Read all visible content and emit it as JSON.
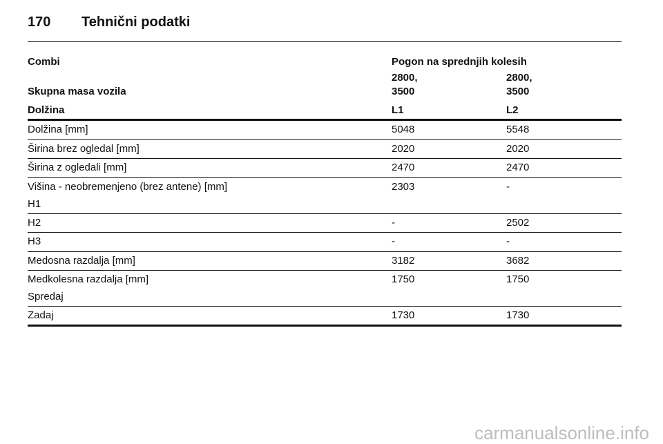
{
  "header": {
    "page_number": "170",
    "title": "Tehnični podatki"
  },
  "table": {
    "group_label": "Combi",
    "group_value": "Pogon na sprednjih kolesih",
    "mass_label": "Skupna masa vozila",
    "mass_values": [
      [
        "2800,",
        "3500"
      ],
      [
        "2800,",
        "3500"
      ]
    ],
    "column_label": "Dolžina",
    "columns": [
      "L1",
      "L2"
    ],
    "rows": [
      [
        [
          "Dolžina [mm]"
        ],
        "5048",
        "5548"
      ],
      [
        [
          "Širina brez ogledal [mm]"
        ],
        "2020",
        "2020"
      ],
      [
        [
          "Širina z ogledali [mm]"
        ],
        "2470",
        "2470"
      ],
      [
        [
          "Višina - neobremenjeno (brez antene) [mm]",
          "H1"
        ],
        "2303",
        "-"
      ],
      [
        [
          "H2"
        ],
        "-",
        "2502"
      ],
      [
        [
          "H3"
        ],
        "-",
        "-"
      ],
      [
        [
          "Medosna razdalja [mm]"
        ],
        "3182",
        "3682"
      ],
      [
        [
          "Medkolesna razdalja [mm]",
          "Spredaj"
        ],
        "1750",
        "1750"
      ],
      [
        [
          "Zadaj"
        ],
        "1730",
        "1730"
      ]
    ]
  },
  "watermark": "carmanualsonline.info"
}
